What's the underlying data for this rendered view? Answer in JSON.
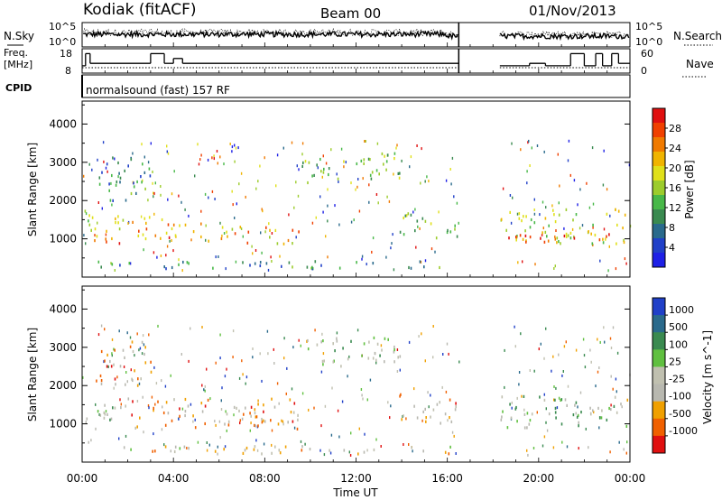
{
  "header": {
    "station": "Kodiak (fitACF)",
    "beam": "Beam 00",
    "date": "01/Nov/2013"
  },
  "panel_labels": {
    "nsky": "N.Sky",
    "freq": "Freq.",
    "freq_unit": "[MHz]",
    "cpid": "CPID",
    "nsearch": "N.Search",
    "nave": "Nave"
  },
  "cpid_text": "normalsound (fast) 157 RF",
  "colors": {
    "power": [
      "#1e20e6",
      "#2040c8",
      "#2a6a8c",
      "#3a8a50",
      "#48b848",
      "#9ccc2c",
      "#e0e01a",
      "#f0b400",
      "#f07a00",
      "#f04000",
      "#e01010"
    ],
    "velocity": [
      "#2040c8",
      "#2a6a8c",
      "#3a8a50",
      "#60c040",
      "#c0c0b0",
      "#b8b8b0",
      "#f0a000",
      "#f06000",
      "#e01010"
    ]
  },
  "chart_data": [
    {
      "type": "line",
      "name": "nsky-nsearch",
      "ylabel": "",
      "ytick_labels_left": [
        "10^5",
        "10^0"
      ],
      "ytick_labels_right": [
        "10^5",
        "10^0"
      ],
      "xlim": [
        0,
        24
      ],
      "gap_hours": [
        16.5,
        18.3
      ]
    },
    {
      "type": "line",
      "name": "freq-nave",
      "yticks_left": [
        8,
        18
      ],
      "yticks_right": [
        0,
        60
      ],
      "ylim_left": [
        8,
        18
      ],
      "ylim_right": [
        0,
        60
      ],
      "freq_steps": [
        {
          "x": [
            0,
            0.15
          ],
          "y": 11
        },
        {
          "x": [
            0.15,
            0.35
          ],
          "y": 16
        },
        {
          "x": [
            0.35,
            3.0
          ],
          "y": 12
        },
        {
          "x": [
            3.0,
            3.6
          ],
          "y": 16
        },
        {
          "x": [
            3.6,
            4.0
          ],
          "y": 12
        },
        {
          "x": [
            4.0,
            4.4
          ],
          "y": 14
        },
        {
          "x": [
            4.4,
            16.5
          ],
          "y": 12
        },
        {
          "x": [
            18.3,
            19.6
          ],
          "y": 11
        },
        {
          "x": [
            19.6,
            20.3
          ],
          "y": 12
        },
        {
          "x": [
            20.3,
            21.4
          ],
          "y": 11
        },
        {
          "x": [
            21.4,
            22.0
          ],
          "y": 16
        },
        {
          "x": [
            22.0,
            22.5
          ],
          "y": 11
        },
        {
          "x": [
            22.5,
            22.8
          ],
          "y": 16
        },
        {
          "x": [
            22.8,
            23.2
          ],
          "y": 11
        },
        {
          "x": [
            23.2,
            23.5
          ],
          "y": 16
        },
        {
          "x": [
            23.5,
            24
          ],
          "y": 12
        }
      ]
    },
    {
      "type": "heatmap",
      "name": "power",
      "ylabel": "Slant Range [km]",
      "ylim": [
        0,
        4600
      ],
      "yticks": [
        1000,
        2000,
        3000,
        4000
      ],
      "xlim": [
        0,
        24
      ],
      "colorbar_label": "Power [dB]",
      "colorbar_ticks": [
        4,
        8,
        12,
        16,
        20,
        24,
        28
      ],
      "colorbar_range": [
        0,
        32
      ],
      "bands": [
        {
          "x": [
            0.1,
            1.9
          ],
          "r": [
            1000,
            1800
          ],
          "level": 0.55
        },
        {
          "x": [
            0.5,
            1.8
          ],
          "r": [
            900,
            1150
          ],
          "level": 0.9
        },
        {
          "x": [
            2.0,
            5.5
          ],
          "r": [
            1000,
            1600
          ],
          "level": 0.75
        },
        {
          "x": [
            5.5,
            9.5
          ],
          "r": [
            900,
            1350
          ],
          "level": 0.7
        },
        {
          "x": [
            9.6,
            14.0
          ],
          "r": [
            2500,
            3300
          ],
          "level": 0.45
        },
        {
          "x": [
            13.8,
            16.4
          ],
          "r": [
            1050,
            1700
          ],
          "level": 0.45
        },
        {
          "x": [
            18.3,
            24
          ],
          "r": [
            900,
            1800
          ],
          "level": 0.55
        },
        {
          "x": [
            18.3,
            24
          ],
          "r": [
            950,
            1200
          ],
          "level": 0.9
        },
        {
          "x": [
            0.2,
            16.4
          ],
          "r": [
            250,
            450
          ],
          "level": 0.3
        },
        {
          "x": [
            0.5,
            3.0
          ],
          "r": [
            2000,
            3200
          ],
          "level": 0.3
        }
      ]
    },
    {
      "type": "heatmap",
      "name": "velocity",
      "ylabel": "Slant Range [km]",
      "ylim": [
        0,
        4600
      ],
      "yticks": [
        1000,
        2000,
        3000,
        4000
      ],
      "xlim": [
        0,
        24
      ],
      "colorbar_label": "Velocity [m s^-1]",
      "colorbar_tick_labels": [
        "1000",
        "500",
        "100",
        "25",
        "-25",
        "-100",
        "-500",
        "-1000"
      ],
      "bands": [
        {
          "x": [
            0.1,
            2.0
          ],
          "r": [
            1000,
            1700
          ],
          "level": 0.45
        },
        {
          "x": [
            2.0,
            9.5
          ],
          "r": [
            900,
            1700
          ],
          "level": 0.7
        },
        {
          "x": [
            9.6,
            14.0
          ],
          "r": [
            2500,
            3300
          ],
          "level": 0.45
        },
        {
          "x": [
            13.8,
            16.4
          ],
          "r": [
            1050,
            1800
          ],
          "level": 0.7
        },
        {
          "x": [
            18.3,
            24
          ],
          "r": [
            900,
            1750
          ],
          "level": 0.45
        },
        {
          "x": [
            0.2,
            16.4
          ],
          "r": [
            250,
            450
          ],
          "level": 0.6
        },
        {
          "x": [
            0.5,
            3.0
          ],
          "r": [
            2000,
            3200
          ],
          "level": 0.7
        }
      ]
    }
  ],
  "xaxis": {
    "label": "Time UT",
    "tick_labels": [
      "00:00",
      "04:00",
      "08:00",
      "12:00",
      "16:00",
      "20:00",
      "00:00"
    ],
    "tick_hours": [
      0,
      4,
      8,
      12,
      16,
      20,
      24
    ]
  }
}
